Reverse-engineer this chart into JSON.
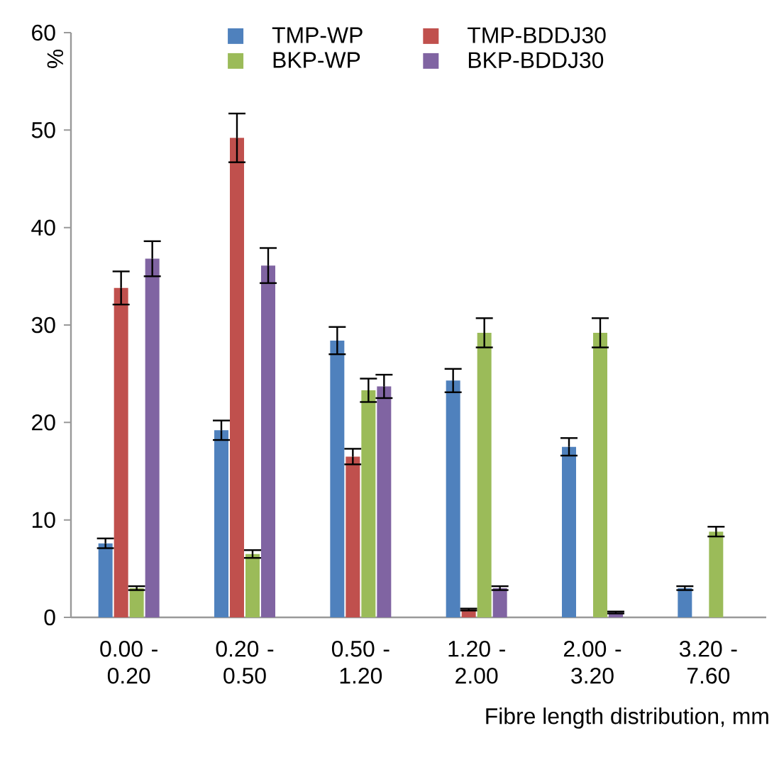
{
  "chart_data": {
    "type": "bar",
    "xlabel": "Fibre length distribution, mm",
    "ylabel": "%",
    "categories": [
      "0.00 - 0.20",
      "0.20 - 0.50",
      "0.50 - 1.20",
      "1.20 - 2.00",
      "2.00 - 3.20",
      "3.20 - 7.60"
    ],
    "series": [
      {
        "name": "TMP-WP",
        "color": "#4f81bd",
        "values": [
          7.6,
          19.2,
          28.4,
          24.3,
          17.5,
          3.0
        ],
        "errors": [
          0.5,
          1.0,
          1.4,
          1.2,
          0.9,
          0.2
        ]
      },
      {
        "name": "TMP-BDDJ30",
        "color": "#c0504d",
        "values": [
          33.8,
          49.2,
          16.5,
          0.8,
          null,
          null
        ],
        "errors": [
          1.7,
          2.5,
          0.8,
          0.1,
          null,
          null
        ]
      },
      {
        "name": "BKP-WP",
        "color": "#9bbb59",
        "values": [
          3.0,
          6.5,
          23.3,
          29.2,
          29.2,
          8.8
        ],
        "errors": [
          0.2,
          0.4,
          1.2,
          1.5,
          1.5,
          0.5
        ]
      },
      {
        "name": "BKP-BDDJ30",
        "color": "#8064a2",
        "values": [
          36.8,
          36.1,
          23.7,
          3.0,
          0.5,
          null
        ],
        "errors": [
          1.8,
          1.8,
          1.2,
          0.2,
          0.1,
          null
        ]
      }
    ],
    "ylim": [
      0,
      60
    ],
    "yticks": [
      0,
      10,
      20,
      30,
      40,
      50,
      60
    ],
    "legend": "top",
    "grid": false
  }
}
